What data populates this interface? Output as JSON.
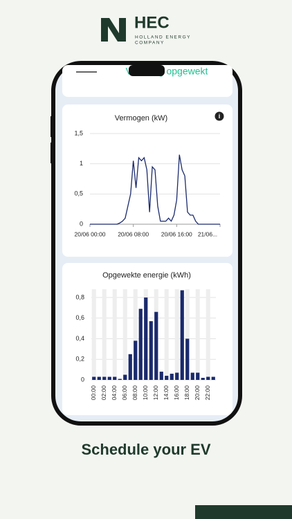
{
  "header": {
    "brand": "HEC",
    "tagline_1": "HOLLAND ENERGY",
    "tagline_2": "COMPANY"
  },
  "screen": {
    "top_card_title": "Vandaag opgewekt"
  },
  "chart_data": [
    {
      "type": "line",
      "title": "Vermogen (kW)",
      "color": "#1a2a6c",
      "x": [
        0,
        0.5,
        1,
        1.5,
        2,
        2.5,
        3,
        3.5,
        4,
        4.5,
        5,
        5.5,
        6,
        6.5,
        7,
        7.5,
        8,
        8.5,
        9,
        9.5,
        10,
        10.5,
        11,
        11.5,
        12,
        12.5,
        13,
        13.5,
        14,
        14.5,
        15,
        15.5,
        16,
        16.5,
        17,
        17.5,
        18,
        18.5,
        19,
        19.5,
        20,
        20.5,
        21,
        21.5,
        22,
        22.5,
        23,
        23.5,
        24
      ],
      "values": [
        0,
        0,
        0,
        0,
        0,
        0,
        0,
        0,
        0,
        0,
        0,
        0.02,
        0.05,
        0.1,
        0.3,
        0.5,
        1.05,
        0.6,
        1.1,
        1.05,
        1.1,
        0.9,
        0.2,
        0.95,
        0.9,
        0.3,
        0.05,
        0.05,
        0.05,
        0.1,
        0.05,
        0.15,
        0.4,
        1.15,
        0.9,
        0.8,
        0.2,
        0.15,
        0.15,
        0.05,
        0,
        0,
        0,
        0,
        0,
        0,
        0,
        0,
        0
      ],
      "xlim": [
        0,
        24
      ],
      "xticks": [
        {
          "value": 0,
          "label": "20/06 00:00"
        },
        {
          "value": 8,
          "label": "20/06 08:00"
        },
        {
          "value": 16,
          "label": "20/06 16:00"
        },
        {
          "value": 24,
          "label": "21/06..."
        }
      ],
      "ylim": [
        0,
        1.5
      ],
      "yticks": [
        0,
        {
          "value": 0.5,
          "label": "0,5"
        },
        1,
        {
          "value": 1.5,
          "label": "1,5"
        }
      ],
      "grid": true
    },
    {
      "type": "bar",
      "title": "Opgewekte energie (kWh)",
      "color": "#1a2a6c",
      "categories": [
        "00:00",
        null,
        "02:00",
        null,
        "04:00",
        null,
        "06:00",
        null,
        "08:00",
        null,
        "10:00",
        null,
        "12:00",
        null,
        "14:00",
        null,
        "16:00",
        null,
        "18:00",
        null,
        "20:00",
        null,
        "22:00",
        null
      ],
      "values": [
        0.03,
        0.03,
        0.03,
        0.03,
        0.03,
        0.01,
        0.05,
        0.25,
        0.38,
        0.69,
        0.8,
        0.57,
        0.66,
        0.08,
        0.04,
        0.06,
        0.07,
        0.87,
        0.4,
        0.07,
        0.07,
        0.02,
        0.03,
        0.03
      ],
      "ylim": [
        0,
        0.9
      ],
      "yticks": [
        0,
        {
          "value": 0.2,
          "label": "0,2"
        },
        {
          "value": 0.4,
          "label": "0,4"
        },
        {
          "value": 0.6,
          "label": "0,6"
        },
        {
          "value": 0.8,
          "label": "0,8"
        }
      ],
      "grid": true
    }
  ],
  "caption": "Schedule your EV"
}
